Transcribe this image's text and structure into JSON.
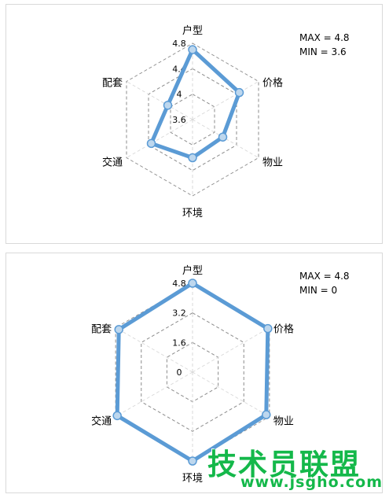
{
  "chart_data": [
    {
      "type": "radar",
      "categories": [
        "户型",
        "价格",
        "物业",
        "环境",
        "交通",
        "配套"
      ],
      "values": [
        4.7,
        4.45,
        4.15,
        4.2,
        4.35,
        4.05
      ],
      "rmin": 3.6,
      "rmax": 4.8,
      "tick_labels": [
        "3.6",
        "4",
        "4.4",
        "4.8"
      ],
      "grid": true,
      "annotation": {
        "max_text": "MAX = 4.8",
        "min_text": "MIN  = 3.6"
      },
      "line_color": "#5b9bd5",
      "marker_fill": "#bdd7ee"
    },
    {
      "type": "radar",
      "categories": [
        "户型",
        "价格",
        "物业",
        "环境",
        "交通",
        "配套"
      ],
      "values": [
        4.8,
        4.7,
        4.6,
        4.8,
        4.7,
        4.6
      ],
      "rmin": 0,
      "rmax": 4.8,
      "tick_labels": [
        "0",
        "1.6",
        "3.2",
        "4.8"
      ],
      "grid": true,
      "annotation": {
        "max_text": "MAX = 4.8",
        "min_text": "MIN  = 0"
      },
      "line_color": "#5b9bd5",
      "marker_fill": "#bdd7ee"
    }
  ],
  "watermark": {
    "main": "技术员联盟",
    "url": "www.jsgho.com"
  }
}
